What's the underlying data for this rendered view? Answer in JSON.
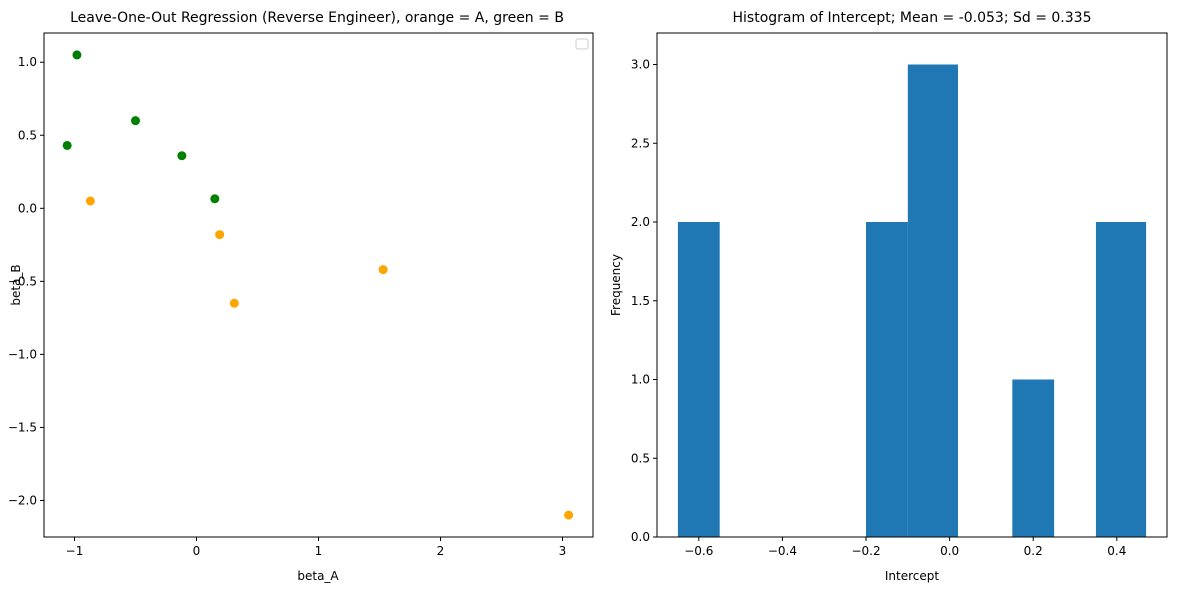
{
  "chart_data": [
    {
      "type": "scatter",
      "title": "Leave-One-Out Regression (Reverse Engineer), orange = A, green = B",
      "xlabel": "beta_A",
      "ylabel": "beta_B",
      "xlim": [
        -1.25,
        3.25
      ],
      "ylim": [
        -2.25,
        1.2
      ],
      "xticks": [
        -1,
        0,
        1,
        2,
        3
      ],
      "xtick_labels": [
        "−1",
        "0",
        "1",
        "2",
        "3"
      ],
      "yticks": [
        -2.0,
        -1.5,
        -1.0,
        -0.5,
        0.0,
        0.5,
        1.0
      ],
      "ytick_labels": [
        "−2.0",
        "−1.5",
        "−1.0",
        "−0.5",
        "0.0",
        "0.5",
        "1.0"
      ],
      "grid": false,
      "legend": "top-right (empty)",
      "series": [
        {
          "color": "#ffa500",
          "points": [
            [
              -0.87,
              0.05
            ],
            [
              0.19,
              -0.18
            ],
            [
              0.31,
              -0.65
            ],
            [
              1.53,
              -0.42
            ],
            [
              3.05,
              -2.1
            ]
          ]
        },
        {
          "color": "#008000",
          "points": [
            [
              -0.98,
              1.05
            ],
            [
              -1.06,
              0.43
            ],
            [
              -0.5,
              0.6
            ],
            [
              -0.12,
              0.36
            ],
            [
              0.15,
              0.065
            ]
          ]
        }
      ]
    },
    {
      "type": "histogram",
      "title": "Histogram of Intercept; Mean = -0.053; Sd = 0.335",
      "xlabel": "Intercept",
      "ylabel": "Frequency",
      "xlim": [
        -0.7,
        0.52
      ],
      "ylim": [
        0,
        3.2
      ],
      "xticks": [
        -0.6,
        -0.4,
        -0.2,
        0.0,
        0.2,
        0.4
      ],
      "xtick_labels": [
        "−0.6",
        "−0.4",
        "−0.2",
        "0.0",
        "0.2",
        "0.4"
      ],
      "yticks": [
        0.0,
        0.5,
        1.0,
        1.5,
        2.0,
        2.5,
        3.0
      ],
      "ytick_labels": [
        "0.0",
        "0.5",
        "1.0",
        "1.5",
        "2.0",
        "2.5",
        "3.0"
      ],
      "grid": false,
      "bar_color": "#1f77b4",
      "bins": [
        {
          "x0": -0.65,
          "x1": -0.55,
          "count": 2
        },
        {
          "x0": -0.55,
          "x1": -0.45,
          "count": 0
        },
        {
          "x0": -0.45,
          "x1": -0.35,
          "count": 0
        },
        {
          "x0": -0.35,
          "x1": -0.25,
          "count": 0
        },
        {
          "x0": -0.2,
          "x1": -0.1,
          "count": 2
        },
        {
          "x0": -0.1,
          "x1": 0.02,
          "count": 3
        },
        {
          "x0": 0.02,
          "x1": 0.15,
          "count": 0
        },
        {
          "x0": 0.15,
          "x1": 0.25,
          "count": 1
        },
        {
          "x0": 0.25,
          "x1": 0.35,
          "count": 0
        },
        {
          "x0": 0.35,
          "x1": 0.47,
          "count": 2
        }
      ]
    }
  ]
}
